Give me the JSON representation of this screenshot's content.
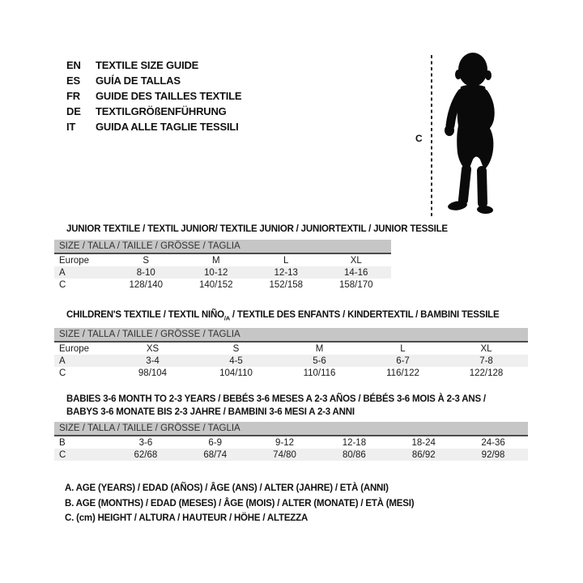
{
  "languages": [
    {
      "code": "EN",
      "label": "TEXTILE SIZE GUIDE"
    },
    {
      "code": "ES",
      "label": "GUÍA DE TALLAS"
    },
    {
      "code": "FR",
      "label": "GUIDE DES TAILLES TEXTILE"
    },
    {
      "code": "DE",
      "label": "TEXTILGRÖßENFÜHRUNG"
    },
    {
      "code": "IT",
      "label": "GUIDA ALLE TAGLIE TESSILI"
    }
  ],
  "figure": {
    "icon": "toddler-silhouette",
    "measure_label": "C"
  },
  "tables": [
    {
      "title_lines": [
        "JUNIOR TEXTILE / TEXTIL JUNIOR/ TEXTILE JUNIOR / JUNIORTEXTIL / JUNIOR TESSILE"
      ],
      "header_bar": "SIZE / TALLA / TAILLE / GRÖSSE / TAGLIA",
      "rows": [
        {
          "label": "Europe",
          "cells": [
            "S",
            "M",
            "L",
            "XL"
          ],
          "shaded": false
        },
        {
          "label": "A",
          "cells": [
            "8-10",
            "10-12",
            "12-13",
            "14-16"
          ],
          "shaded": true
        },
        {
          "label": "C",
          "cells": [
            "128/140",
            "140/152",
            "152/158",
            "158/170"
          ],
          "shaded": false
        }
      ]
    },
    {
      "title_parts": {
        "pre": "CHILDREN'S TEXTILE / TEXTIL NIÑO",
        "sub": "/A",
        "post": " / TEXTILE DES ENFANTS / KINDERTEXTIL / BAMBINI TESSILE"
      },
      "header_bar": "SIZE / TALLA / TAILLE / GRÖSSE / TAGLIA",
      "rows": [
        {
          "label": "Europe",
          "cells": [
            "XS",
            "S",
            "M",
            "L",
            "XL"
          ],
          "shaded": false
        },
        {
          "label": "A",
          "cells": [
            "3-4",
            "4-5",
            "5-6",
            "6-7",
            "7-8"
          ],
          "shaded": true
        },
        {
          "label": "C",
          "cells": [
            "98/104",
            "104/110",
            "110/116",
            "116/122",
            "122/128"
          ],
          "shaded": false
        }
      ]
    },
    {
      "title_lines": [
        "BABIES 3-6 MONTH TO 2-3 YEARS / BEBÉS 3-6 MESES A 2-3 AÑOS / BÉBÉS 3-6 MOIS À 2-3 ANS /",
        "BABYS 3-6 MONATE BIS 2-3 JAHRE / BAMBINI 3-6 MESI A 2-3 ANNI"
      ],
      "header_bar": "SIZE / TALLA / TAILLE / GRÖSSE / TAGLIA",
      "rows": [
        {
          "label": "B",
          "cells": [
            "3-6",
            "6-9",
            "9-12",
            "12-18",
            "18-24",
            "24-36"
          ],
          "shaded": false
        },
        {
          "label": "C",
          "cells": [
            "62/68",
            "68/74",
            "74/80",
            "80/86",
            "86/92",
            "92/98"
          ],
          "shaded": true
        }
      ]
    }
  ],
  "notes": [
    "A. AGE (YEARS) / EDAD (AÑOS) / ÂGE (ANS) / ALTER (JAHRE) / ETÀ (ANNI)",
    "B. AGE (MONTHS) / EDAD (MESES) / ÂGE (MOIS) / ALTER (MONATE) / ETÀ (MESI)",
    "C. (cm) HEIGHT / ALTURA / HAUTEUR / HÖHE / ALTEZZA"
  ],
  "colors": {
    "header_bar_bg": "#c6c6c6",
    "header_bar_border": "#4c4c4c",
    "shaded_row_bg": "#efefef",
    "text": "#111111",
    "silhouette": "#0a0a0a"
  }
}
